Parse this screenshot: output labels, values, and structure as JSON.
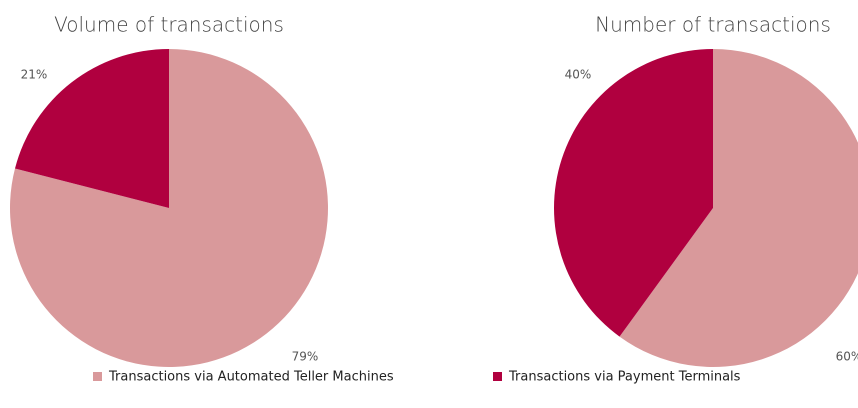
{
  "chart_data": [
    {
      "type": "pie",
      "title": "Volume of transactions",
      "values": [
        79,
        21
      ],
      "value_labels": [
        "79%",
        "21%"
      ],
      "colors": [
        "#d9999b",
        "#b0003f"
      ]
    },
    {
      "type": "pie",
      "title": "Number of transactions",
      "values": [
        60,
        40
      ],
      "value_labels": [
        "60%",
        "40%"
      ],
      "colors": [
        "#d9999b",
        "#b0003f"
      ]
    }
  ],
  "legend": {
    "categories": [
      "Transactions via Automated Teller Machines",
      "Transactions via Payment Terminals"
    ],
    "colors": [
      "#d9999b",
      "#b0003f"
    ]
  }
}
